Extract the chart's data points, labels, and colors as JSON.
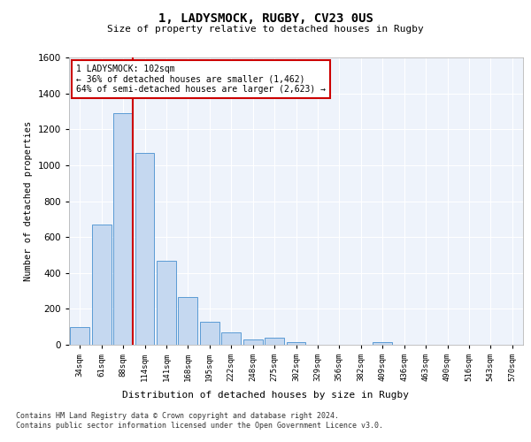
{
  "title_line1": "1, LADYSMOCK, RUGBY, CV23 0US",
  "title_line2": "Size of property relative to detached houses in Rugby",
  "xlabel": "Distribution of detached houses by size in Rugby",
  "ylabel": "Number of detached properties",
  "categories": [
    "34sqm",
    "61sqm",
    "88sqm",
    "114sqm",
    "141sqm",
    "168sqm",
    "195sqm",
    "222sqm",
    "248sqm",
    "275sqm",
    "302sqm",
    "329sqm",
    "356sqm",
    "382sqm",
    "409sqm",
    "436sqm",
    "463sqm",
    "490sqm",
    "516sqm",
    "543sqm",
    "570sqm"
  ],
  "values": [
    97,
    668,
    1290,
    1068,
    468,
    265,
    128,
    67,
    32,
    37,
    14,
    0,
    0,
    0,
    14,
    0,
    0,
    0,
    0,
    0,
    0
  ],
  "bar_color": "#c5d8f0",
  "bar_edge_color": "#5b9bd5",
  "vline_x": 2,
  "vline_color": "#cc0000",
  "ylim": [
    0,
    1600
  ],
  "yticks": [
    0,
    200,
    400,
    600,
    800,
    1000,
    1200,
    1400,
    1600
  ],
  "annotation_text": "1 LADYSMOCK: 102sqm\n← 36% of detached houses are smaller (1,462)\n64% of semi-detached houses are larger (2,623) →",
  "annotation_box_color": "#ffffff",
  "annotation_box_edge": "#cc0000",
  "footer_line1": "Contains HM Land Registry data © Crown copyright and database right 2024.",
  "footer_line2": "Contains public sector information licensed under the Open Government Licence v3.0.",
  "bg_color": "#eef3fb",
  "grid_color": "#ffffff",
  "fig_bg": "#ffffff"
}
